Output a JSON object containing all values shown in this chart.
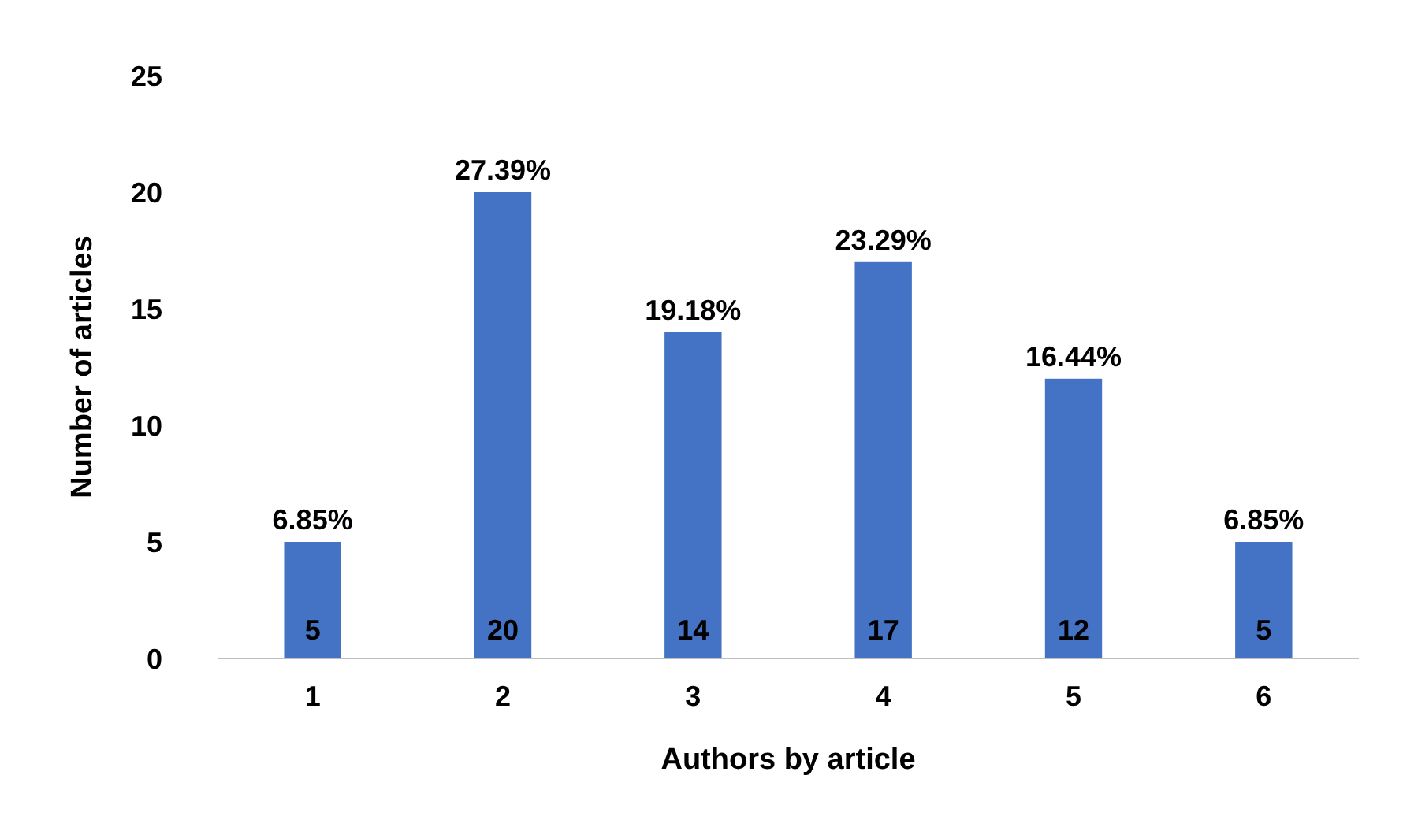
{
  "chart_data": {
    "type": "bar",
    "xlabel": "Authors by article",
    "ylabel": "Number of articles",
    "categories": [
      "1",
      "2",
      "3",
      "4",
      "5",
      "6"
    ],
    "values": [
      5,
      20,
      14,
      17,
      12,
      5
    ],
    "color": "#4472c4",
    "ylim": [
      0,
      25
    ],
    "yticks": [
      0,
      5,
      10,
      15,
      20,
      25
    ],
    "grid": false,
    "data_labels": true,
    "annotations": [
      {
        "text": "6.85%",
        "x": "1",
        "y": 5
      },
      {
        "text": "27.39%",
        "x": "2",
        "y": 20
      },
      {
        "text": "19.18%",
        "x": "3",
        "y": 14
      },
      {
        "text": "23.29%",
        "x": "4",
        "y": 17
      },
      {
        "text": "16.44%",
        "x": "5",
        "y": 12
      },
      {
        "text": "6.85%",
        "x": "6",
        "y": 5
      }
    ]
  }
}
